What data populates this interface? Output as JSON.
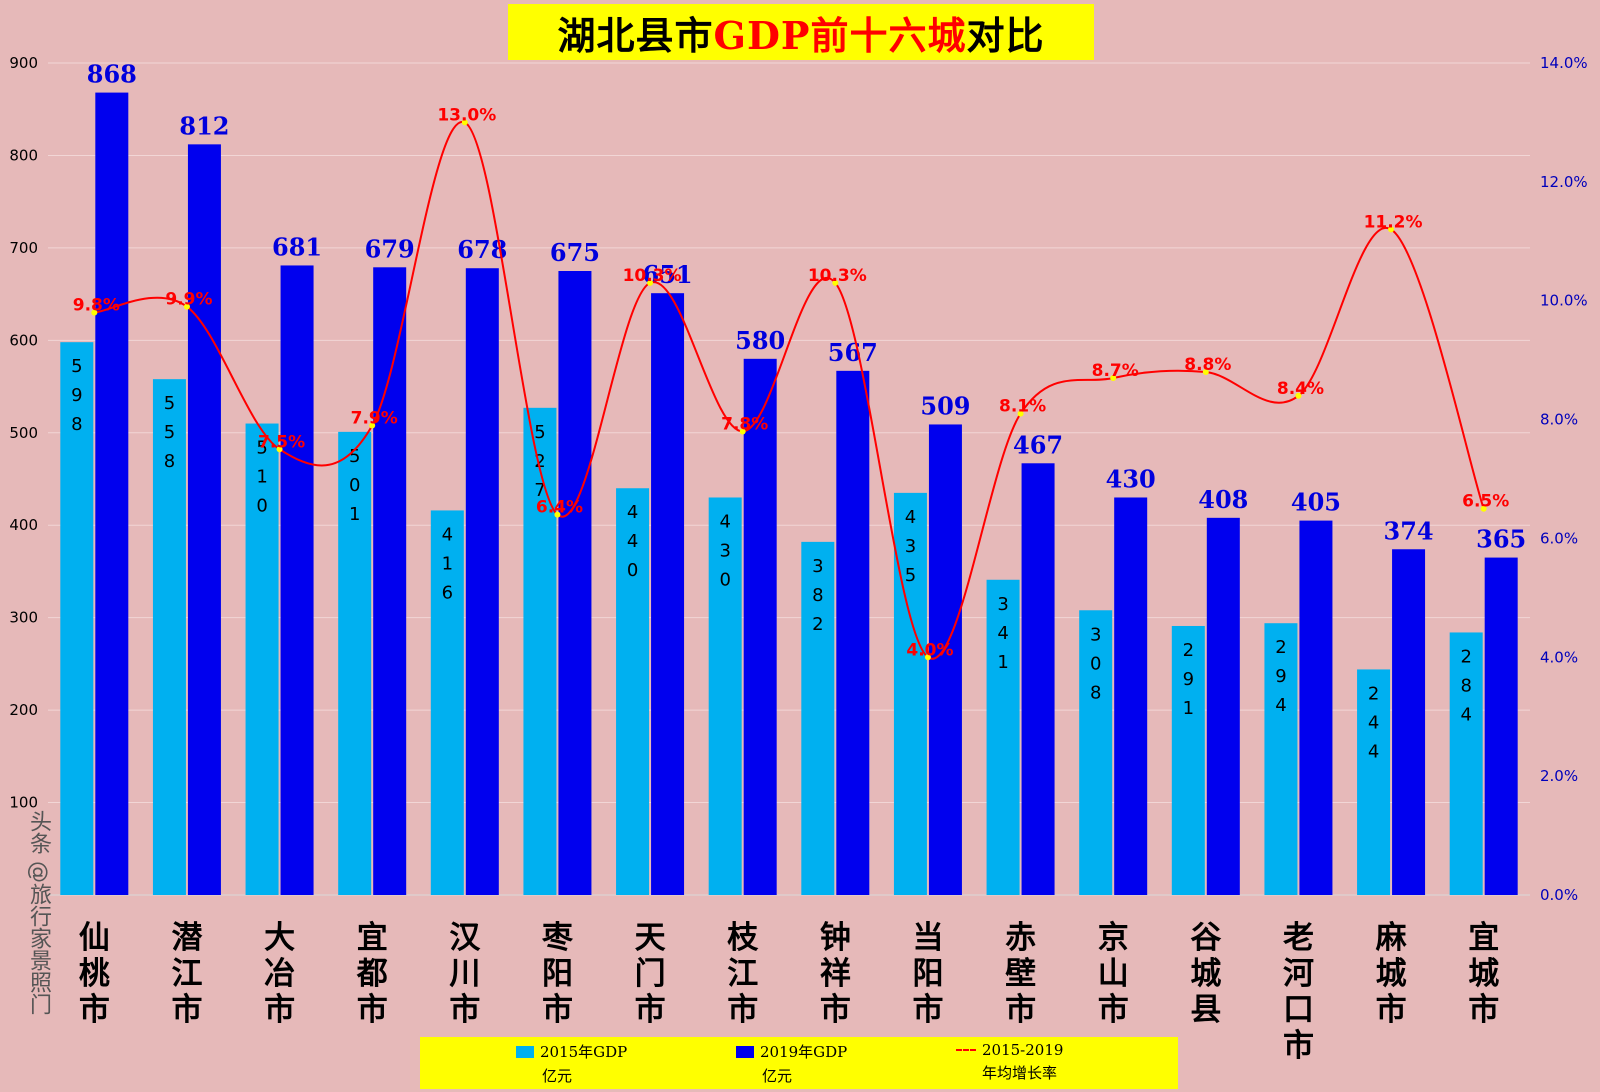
{
  "title": {
    "part1": "湖北县市",
    "part2": "GDP前十六城",
    "part3": "对比"
  },
  "watermark": "头条 @旅行家景照门",
  "colors": {
    "bar2015": "#00b0f0",
    "bar2019": "#0000ee",
    "line": "#ff0000",
    "background": "#e6b9b9",
    "legendBg": "#ffff00"
  },
  "legend": [
    {
      "line1": "2015年GDP",
      "line2": "亿元"
    },
    {
      "line1": "2019年GDP",
      "line2": "亿元"
    },
    {
      "line1": "2015-2019",
      "line2": "年均增长率"
    }
  ],
  "chart_data": {
    "type": "bar",
    "categories": [
      "仙桃市",
      "潜江市",
      "大冶市",
      "宜都市",
      "汉川市",
      "枣阳市",
      "天门市",
      "枝江市",
      "钟祥市",
      "当阳市",
      "赤壁市",
      "京山市",
      "谷城县",
      "老河口市",
      "麻城市",
      "宜城市"
    ],
    "series": [
      {
        "name": "2015年GDP 亿元",
        "type": "bar",
        "axis": "left",
        "values": [
          598,
          558,
          510,
          501,
          416,
          527,
          440,
          430,
          382,
          435,
          341,
          308,
          291,
          294,
          244,
          284
        ]
      },
      {
        "name": "2019年GDP 亿元",
        "type": "bar",
        "axis": "left",
        "values": [
          868,
          812,
          681,
          679,
          678,
          675,
          651,
          580,
          567,
          509,
          467,
          430,
          408,
          405,
          374,
          365
        ]
      },
      {
        "name": "2015-2019 年均增长率",
        "type": "line",
        "axis": "right",
        "values": [
          9.8,
          9.9,
          7.5,
          7.9,
          13.0,
          6.4,
          10.3,
          7.8,
          10.3,
          4.0,
          8.1,
          8.7,
          8.8,
          8.4,
          11.2,
          6.5
        ],
        "labels": [
          "9.8%",
          "9.9%",
          "7.5%",
          "7.9%",
          "13.0%",
          "6.4%",
          "10.3%",
          "7.8%",
          "10.3%",
          "4.0%",
          "8.1%",
          "8.7%",
          "8.8%",
          "8.4%",
          "11.2%",
          "6.5%"
        ]
      }
    ],
    "yleft": {
      "min": 0,
      "max": 900,
      "ticks": [
        100,
        200,
        300,
        400,
        500,
        600,
        700,
        800,
        900
      ]
    },
    "yright": {
      "min": 0,
      "max": 14,
      "ticks": [
        "0.0%",
        "2.0%",
        "4.0%",
        "6.0%",
        "8.0%",
        "10.0%",
        "12.0%",
        "14.0%"
      ]
    },
    "grid": true,
    "legend_position": "bottom"
  }
}
